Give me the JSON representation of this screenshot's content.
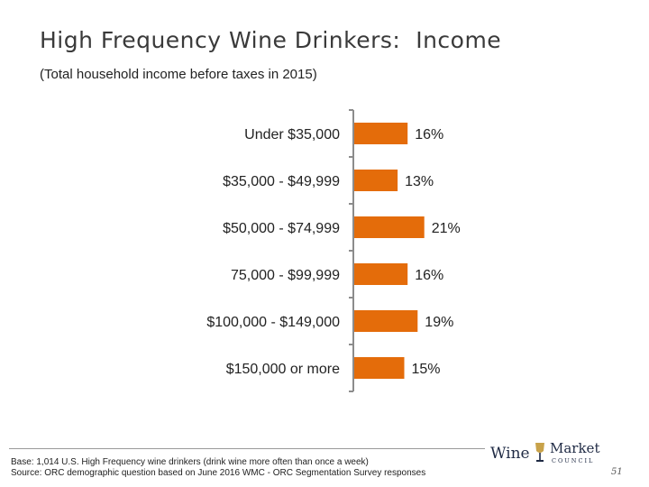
{
  "chart_data": {
    "type": "bar",
    "orientation": "horizontal",
    "title": "High Frequency Wine Drinkers:  Income",
    "subtitle": "(Total household income before taxes in 2015)",
    "categories": [
      "Under $35,000",
      "$35,000 - $49,999",
      "$50,000 - $74,999",
      "75,000 - $99,999",
      "$100,000 - $149,000",
      "$150,000 or more"
    ],
    "values": [
      16,
      13,
      21,
      16,
      19,
      15
    ],
    "data_labels": [
      "16%",
      "13%",
      "21%",
      "16%",
      "19%",
      "15%"
    ],
    "unit": "%",
    "xlim": [
      0,
      100
    ],
    "bar_color": "#e46c0a",
    "grid": false,
    "legend": "none"
  },
  "footnote": {
    "line1": "Base: 1,014 U.S. High Frequency wine drinkers (drink wine more often than once a week)",
    "line2": "Source: ORC demographic question based on June 2016 WMC - ORC Segmentation Survey responses"
  },
  "logo": {
    "wine": "Wine",
    "market": "Market",
    "council": "COUNCIL"
  },
  "page_number": "51"
}
